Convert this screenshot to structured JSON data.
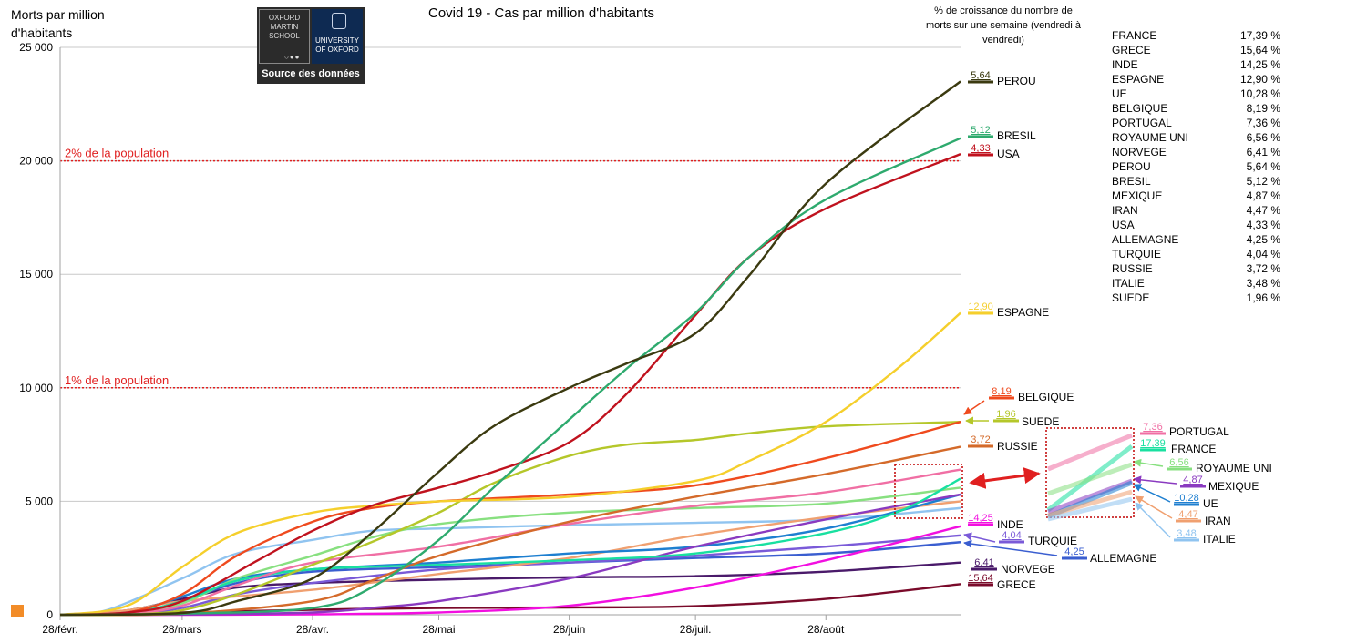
{
  "chart_data": {
    "type": "line",
    "title": "Covid 19 - Cas par million d'habitants",
    "ylabel": "Morts par million d'habitants",
    "ylim": [
      0,
      25000
    ],
    "yticks": [
      0,
      5000,
      10000,
      15000,
      20000,
      25000
    ],
    "ytick_labels": [
      "0",
      "5 000",
      "10 000",
      "15 000",
      "20 000",
      "25 000"
    ],
    "xlim": [
      "2020-02-28",
      "2020-09-29"
    ],
    "xticks": [
      "2020-02-28",
      "2020-03-28",
      "2020-04-28",
      "2020-05-28",
      "2020-06-28",
      "2020-07-28",
      "2020-08-28"
    ],
    "xtick_labels": [
      "28/févr.",
      "28/mars",
      "28/avr.",
      "28/mai",
      "28/juin",
      "28/juil.",
      "28/août"
    ],
    "grid": "horizontal",
    "reference_lines": [
      {
        "y": 20000,
        "label": "2% de la population",
        "color": "#e02020"
      },
      {
        "y": 10000,
        "label": "1% de la population",
        "color": "#e02020"
      }
    ],
    "growth_header": "% de croissance du nombre de morts sur une semaine (vendredi à vendredi)",
    "series": [
      {
        "name": "PEROU",
        "color": "#3b3a10",
        "growth": "5,64",
        "x": [
          "2020-02-28",
          "2020-03-28",
          "2020-04-10",
          "2020-04-28",
          "2020-05-12",
          "2020-05-28",
          "2020-06-10",
          "2020-06-28",
          "2020-07-12",
          "2020-07-28",
          "2020-08-10",
          "2020-08-28",
          "2020-09-29"
        ],
        "values": [
          0,
          80,
          600,
          1600,
          3600,
          6300,
          8300,
          10000,
          11100,
          12400,
          15000,
          19000,
          23500
        ]
      },
      {
        "name": "BRESIL",
        "color": "#2eaa6e",
        "growth": "5,12",
        "x": [
          "2020-02-28",
          "2020-03-28",
          "2020-04-28",
          "2020-05-12",
          "2020-05-28",
          "2020-06-10",
          "2020-06-28",
          "2020-07-12",
          "2020-07-28",
          "2020-08-10",
          "2020-08-28",
          "2020-09-29"
        ],
        "values": [
          0,
          50,
          300,
          1200,
          3300,
          5600,
          8600,
          10900,
          13300,
          15800,
          18300,
          21000
        ]
      },
      {
        "name": "USA",
        "color": "#c0121e",
        "growth": "4,33",
        "x": [
          "2020-02-28",
          "2020-03-15",
          "2020-03-28",
          "2020-04-15",
          "2020-04-28",
          "2020-05-12",
          "2020-05-28",
          "2020-06-10",
          "2020-06-28",
          "2020-07-12",
          "2020-07-28",
          "2020-08-10",
          "2020-08-28",
          "2020-09-29"
        ],
        "values": [
          0,
          100,
          600,
          2400,
          3700,
          4800,
          5600,
          6300,
          7600,
          9800,
          13200,
          15800,
          17900,
          20300
        ]
      },
      {
        "name": "ESPAGNE",
        "color": "#f5cf2c",
        "growth": "12,90",
        "x": [
          "2020-02-28",
          "2020-03-15",
          "2020-03-28",
          "2020-04-10",
          "2020-04-28",
          "2020-05-12",
          "2020-05-28",
          "2020-06-28",
          "2020-07-28",
          "2020-08-10",
          "2020-08-28",
          "2020-09-15",
          "2020-09-29"
        ],
        "values": [
          0,
          400,
          2100,
          3600,
          4500,
          4800,
          5000,
          5200,
          5900,
          6800,
          8500,
          11000,
          13300
        ]
      },
      {
        "name": "BELGIQUE",
        "color": "#ef4a1e",
        "growth": "8,19",
        "x": [
          "2020-02-28",
          "2020-03-15",
          "2020-03-28",
          "2020-04-10",
          "2020-04-28",
          "2020-05-12",
          "2020-05-28",
          "2020-06-28",
          "2020-07-28",
          "2020-08-28",
          "2020-09-29"
        ],
        "values": [
          0,
          100,
          900,
          2600,
          4100,
          4700,
          5000,
          5300,
          5700,
          6900,
          8500
        ]
      },
      {
        "name": "SUEDE",
        "color": "#b5c72a",
        "growth": "1,96",
        "x": [
          "2020-02-28",
          "2020-03-15",
          "2020-03-28",
          "2020-04-10",
          "2020-04-28",
          "2020-05-12",
          "2020-05-28",
          "2020-06-10",
          "2020-06-28",
          "2020-07-12",
          "2020-07-28",
          "2020-08-10",
          "2020-08-28",
          "2020-09-29"
        ],
        "values": [
          0,
          10,
          200,
          900,
          2200,
          3200,
          4500,
          5800,
          7000,
          7500,
          7700,
          8000,
          8300,
          8500
        ]
      },
      {
        "name": "RUSSIE",
        "color": "#d46a2a",
        "growth": "3,72",
        "x": [
          "2020-02-28",
          "2020-03-28",
          "2020-04-28",
          "2020-05-12",
          "2020-05-28",
          "2020-06-28",
          "2020-07-28",
          "2020-08-28",
          "2020-09-29"
        ],
        "values": [
          0,
          50,
          600,
          1500,
          2600,
          4100,
          5200,
          6200,
          7400
        ]
      },
      {
        "name": "PORTUGAL",
        "color": "#f06fa4",
        "growth": "7,36",
        "x": [
          "2020-02-28",
          "2020-03-15",
          "2020-03-28",
          "2020-04-10",
          "2020-04-28",
          "2020-05-28",
          "2020-06-28",
          "2020-07-28",
          "2020-08-28",
          "2020-09-29"
        ],
        "values": [
          0,
          20,
          400,
          1300,
          2300,
          3000,
          4000,
          4800,
          5400,
          6400
        ]
      },
      {
        "name": "FRANCE",
        "color": "#19e0a0",
        "growth": "17,39",
        "x": [
          "2020-02-28",
          "2020-03-15",
          "2020-03-28",
          "2020-04-10",
          "2020-04-28",
          "2020-05-28",
          "2020-06-28",
          "2020-07-28",
          "2020-08-28",
          "2020-09-15",
          "2020-09-29"
        ],
        "values": [
          0,
          80,
          600,
          1500,
          2000,
          2200,
          2400,
          2700,
          3600,
          4600,
          6000
        ]
      },
      {
        "name": "ROYAUME UNI",
        "color": "#88e080",
        "growth": "6,56",
        "x": [
          "2020-02-28",
          "2020-03-15",
          "2020-03-28",
          "2020-04-10",
          "2020-04-28",
          "2020-05-12",
          "2020-05-28",
          "2020-06-28",
          "2020-07-28",
          "2020-08-28",
          "2020-09-29"
        ],
        "values": [
          0,
          80,
          500,
          1600,
          2600,
          3400,
          4000,
          4500,
          4700,
          4900,
          5600
        ]
      },
      {
        "name": "MEXIQUE",
        "color": "#8a3ac0",
        "growth": "4,87",
        "x": [
          "2020-02-28",
          "2020-03-28",
          "2020-04-28",
          "2020-05-12",
          "2020-05-28",
          "2020-06-28",
          "2020-07-28",
          "2020-08-28",
          "2020-09-29"
        ],
        "values": [
          0,
          10,
          100,
          300,
          600,
          1600,
          3000,
          4200,
          5300
        ]
      },
      {
        "name": "UE",
        "color": "#1e7fd0",
        "growth": "10,28",
        "x": [
          "2020-02-28",
          "2020-03-15",
          "2020-03-28",
          "2020-04-10",
          "2020-04-28",
          "2020-05-28",
          "2020-06-28",
          "2020-07-28",
          "2020-08-28",
          "2020-09-29"
        ],
        "values": [
          0,
          100,
          800,
          1600,
          2000,
          2300,
          2700,
          3000,
          3800,
          5300
        ]
      },
      {
        "name": "IRAN",
        "color": "#f0a070",
        "growth": "4,47",
        "x": [
          "2020-02-28",
          "2020-03-15",
          "2020-03-28",
          "2020-04-28",
          "2020-05-28",
          "2020-06-28",
          "2020-07-28",
          "2020-08-28",
          "2020-09-29"
        ],
        "values": [
          0,
          200,
          600,
          1100,
          1800,
          2500,
          3500,
          4300,
          5000
        ]
      },
      {
        "name": "ITALIE",
        "color": "#90c4f0",
        "growth": "3,48",
        "x": [
          "2020-02-28",
          "2020-03-10",
          "2020-03-28",
          "2020-04-10",
          "2020-04-28",
          "2020-05-12",
          "2020-05-28",
          "2020-06-28",
          "2020-07-28",
          "2020-08-28",
          "2020-09-29"
        ],
        "values": [
          0,
          200,
          1600,
          2700,
          3300,
          3700,
          3800,
          3950,
          4050,
          4200,
          4700
        ]
      },
      {
        "name": "INDE",
        "color": "#f20fe0",
        "growth": "14,25",
        "x": [
          "2020-02-28",
          "2020-03-28",
          "2020-04-28",
          "2020-05-28",
          "2020-06-28",
          "2020-07-28",
          "2020-08-28",
          "2020-09-29"
        ],
        "values": [
          0,
          0,
          20,
          100,
          400,
          1200,
          2400,
          3900
        ]
      },
      {
        "name": "TURQUIE",
        "color": "#7a5ad8",
        "growth": "4,04",
        "x": [
          "2020-02-28",
          "2020-03-15",
          "2020-03-28",
          "2020-04-10",
          "2020-04-28",
          "2020-05-28",
          "2020-06-28",
          "2020-07-28",
          "2020-08-28",
          "2020-09-29"
        ],
        "values": [
          0,
          10,
          300,
          900,
          1400,
          2000,
          2300,
          2600,
          3000,
          3500
        ]
      },
      {
        "name": "ALLEMAGNE",
        "color": "#3a5ed0",
        "growth": "4,25",
        "x": [
          "2020-02-28",
          "2020-03-15",
          "2020-03-28",
          "2020-04-10",
          "2020-04-28",
          "2020-05-28",
          "2020-06-28",
          "2020-07-28",
          "2020-08-28",
          "2020-09-29"
        ],
        "values": [
          0,
          50,
          600,
          1400,
          1900,
          2100,
          2300,
          2500,
          2700,
          3200
        ]
      },
      {
        "name": "NORVEGE",
        "color": "#4a1a6a",
        "growth": "6,41",
        "x": [
          "2020-02-28",
          "2020-03-15",
          "2020-03-28",
          "2020-04-10",
          "2020-04-28",
          "2020-05-28",
          "2020-06-28",
          "2020-07-28",
          "2020-08-28",
          "2020-09-29"
        ],
        "values": [
          0,
          200,
          700,
          1200,
          1400,
          1550,
          1650,
          1700,
          1900,
          2300
        ]
      },
      {
        "name": "GRECE",
        "color": "#7a0a2a",
        "growth": "15,64",
        "x": [
          "2020-02-28",
          "2020-03-28",
          "2020-04-28",
          "2020-05-28",
          "2020-06-28",
          "2020-07-28",
          "2020-08-28",
          "2020-09-29"
        ],
        "values": [
          0,
          100,
          220,
          300,
          320,
          380,
          700,
          1350
        ]
      }
    ],
    "ranking": [
      {
        "country": "FRANCE",
        "value": "17,39 %"
      },
      {
        "country": "GRECE",
        "value": "15,64 %"
      },
      {
        "country": "INDE",
        "value": "14,25 %"
      },
      {
        "country": "ESPAGNE",
        "value": "12,90 %"
      },
      {
        "country": "UE",
        "value": "10,28 %"
      },
      {
        "country": "BELGIQUE",
        "value": "8,19 %"
      },
      {
        "country": "PORTUGAL",
        "value": "7,36 %"
      },
      {
        "country": "ROYAUME UNI",
        "value": "6,56 %"
      },
      {
        "country": "NORVEGE",
        "value": "6,41 %"
      },
      {
        "country": "PEROU",
        "value": "5,64 %"
      },
      {
        "country": "BRESIL",
        "value": "5,12 %"
      },
      {
        "country": "MEXIQUE",
        "value": "4,87 %"
      },
      {
        "country": "IRAN",
        "value": "4,47 %"
      },
      {
        "country": "USA",
        "value": "4,33 %"
      },
      {
        "country": "ALLEMAGNE",
        "value": "4,25 %"
      },
      {
        "country": "TURQUIE",
        "value": "4,04 %"
      },
      {
        "country": "RUSSIE",
        "value": "3,72 %"
      },
      {
        "country": "ITALIE",
        "value": "3,48 %"
      },
      {
        "country": "SUEDE",
        "value": "1,96 %"
      }
    ]
  },
  "logo": {
    "box1_text": "OXFORD MARTIN SCHOOL",
    "box2_text": "UNIVERSITY OF OXFORD",
    "source_text": "Source des données"
  }
}
